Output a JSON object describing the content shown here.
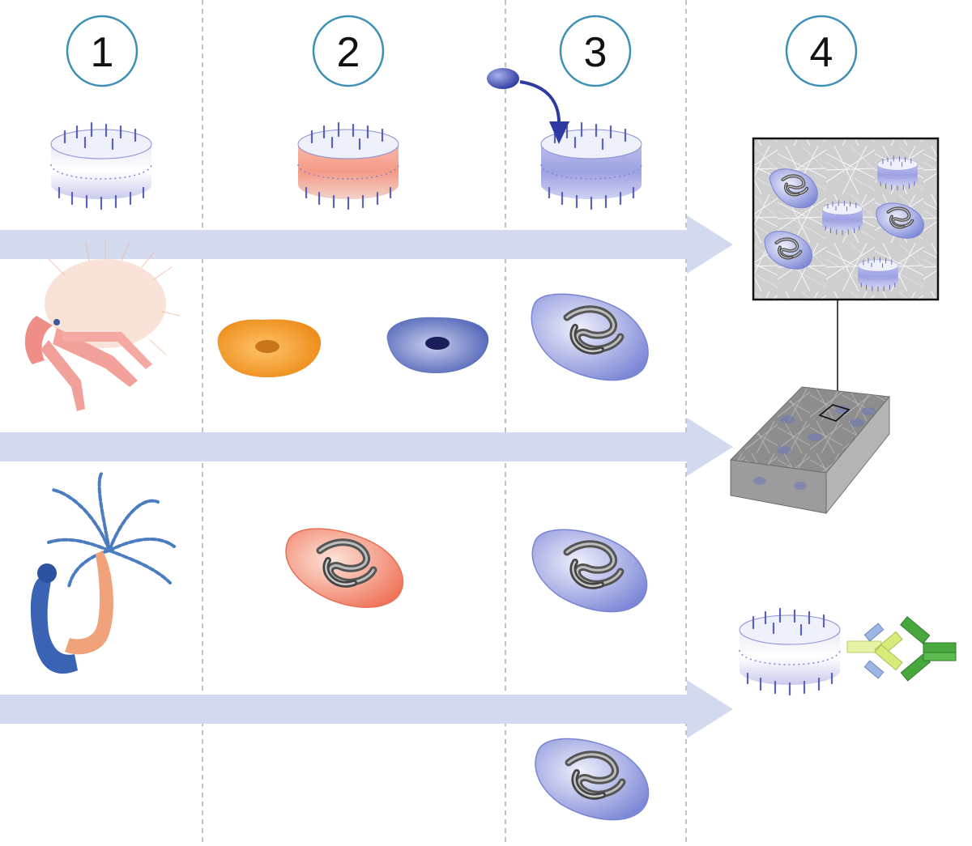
{
  "steps": [
    {
      "number": "1"
    },
    {
      "number": "2"
    },
    {
      "number": "3"
    },
    {
      "number": "4"
    }
  ],
  "colors": {
    "circle_stroke": "#3e8fb5",
    "divider": "#9a9a9a",
    "band": "#d3daf0",
    "red_protein": "#f07a6a",
    "blue_protein": "#8f94dc",
    "orange_cell": "#f0921f",
    "blue_cell": "#5a6ec0",
    "arrow_dark_blue": "#2d3aa0",
    "antibody_yellow": "#d6ec7a",
    "antibody_green": "#47a83e",
    "antibody_blue": "#9fb6e4",
    "matrix_gray": "#8a8a8a"
  },
  "icons": [
    "nanodisc-protein-icon",
    "hermit-crab-icon",
    "sea-anemone-icon",
    "orange-cell-icon",
    "blue-cell-icon",
    "folded-protein-icon",
    "ligand-icon",
    "hydrogel-matrix-icon",
    "antibody-icon"
  ]
}
